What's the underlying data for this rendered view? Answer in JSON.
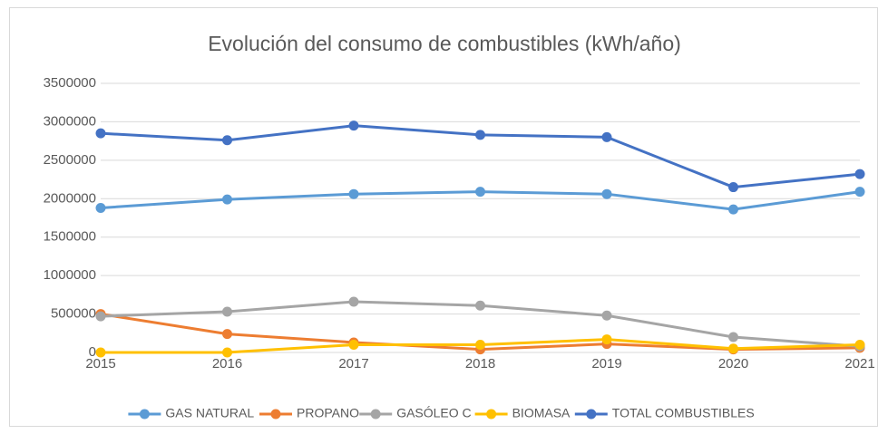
{
  "chart_data": {
    "type": "line",
    "title": "Evolución del consumo de combustibles (kWh/año)",
    "x": [
      2015,
      2016,
      2017,
      2018,
      2019,
      2020,
      2021
    ],
    "xlim": [
      2015,
      2021
    ],
    "xticks": [
      2015,
      2016,
      2017,
      2018,
      2019,
      2020,
      2021
    ],
    "ylim": [
      0,
      3500000
    ],
    "yticks": [
      0,
      500000,
      1000000,
      1500000,
      2000000,
      2500000,
      3000000,
      3500000
    ],
    "grid": true,
    "legend": "bottom",
    "series": [
      {
        "name": "GAS NATURAL",
        "color": "#5b9bd5",
        "values": [
          1880000,
          1990000,
          2060000,
          2090000,
          2060000,
          1860000,
          2090000
        ]
      },
      {
        "name": "PROPANO",
        "color": "#ed7d31",
        "values": [
          500000,
          240000,
          130000,
          40000,
          110000,
          40000,
          60000
        ]
      },
      {
        "name": "GASÓLEO C",
        "color": "#a5a5a5",
        "values": [
          470000,
          530000,
          660000,
          610000,
          480000,
          200000,
          80000
        ]
      },
      {
        "name": "BIOMASA",
        "color": "#ffc000",
        "values": [
          0,
          0,
          100000,
          100000,
          170000,
          50000,
          100000
        ]
      },
      {
        "name": "TOTAL COMBUSTIBLES",
        "color": "#4472c4",
        "values": [
          2850000,
          2760000,
          2950000,
          2830000,
          2800000,
          2150000,
          2320000
        ]
      }
    ]
  }
}
